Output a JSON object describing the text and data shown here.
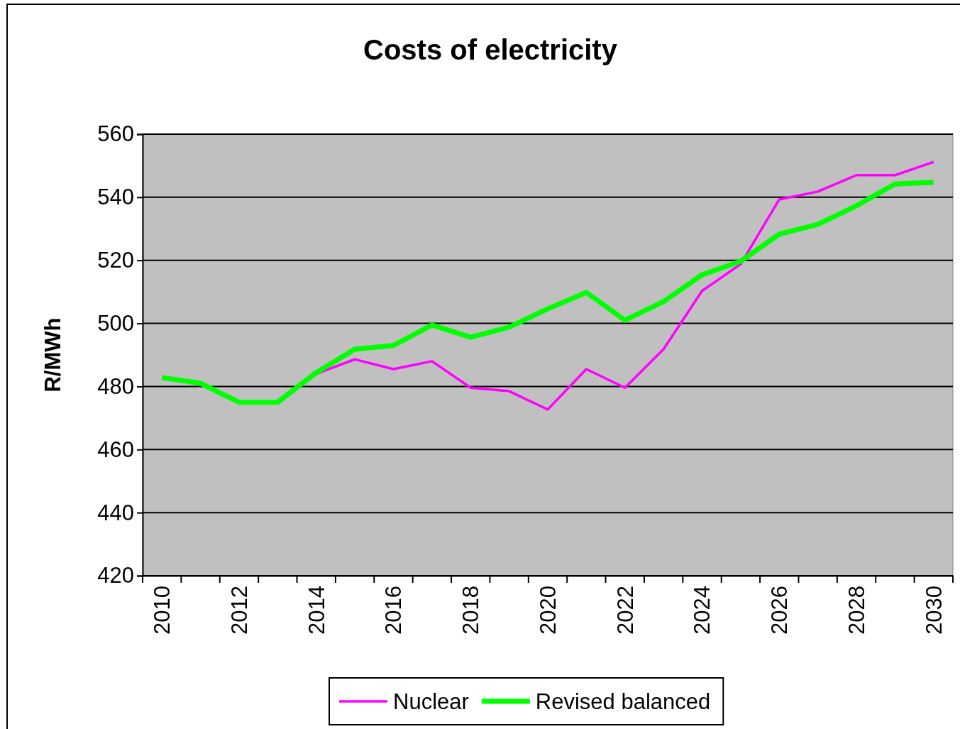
{
  "chart_data": {
    "type": "line",
    "title": "Costs of electricity",
    "ylabel": "R/MWh",
    "categories": [
      "2010",
      null,
      "2012",
      null,
      "2014",
      null,
      "2016",
      null,
      "2018",
      null,
      "2020",
      null,
      "2022",
      null,
      "2024",
      null,
      "2026",
      null,
      "2028",
      null,
      "2030"
    ],
    "series": [
      {
        "name": "Nuclear",
        "color": "#ff00ff",
        "values": [
          null,
          null,
          null,
          null,
          484,
          488.6,
          485.5,
          488,
          479.6,
          478.5,
          472.7,
          485.5,
          479.6,
          491.8,
          510.3,
          518.8,
          539.3,
          541.8,
          547,
          547,
          551.2
        ]
      },
      {
        "name": "Revised balanced",
        "color": "#00ff00",
        "values": [
          482.8,
          481,
          475,
          475,
          484.4,
          491.8,
          493,
          499.5,
          495.6,
          498.8,
          504.6,
          509.8,
          501,
          506.9,
          515.4,
          519.7,
          528.3,
          531.4,
          537.3,
          544.2,
          544.7
        ]
      }
    ],
    "ylim": [
      420,
      560
    ],
    "yticks": [
      420,
      440,
      460,
      480,
      500,
      520,
      540,
      560
    ],
    "grid": "y",
    "legend": "bottom",
    "marker": "none",
    "line_style": "solid"
  }
}
